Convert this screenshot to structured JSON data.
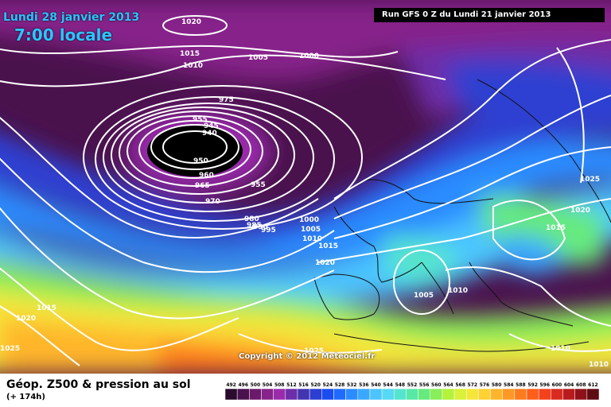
{
  "header": {
    "date": "Lundi 28 janvier 2013",
    "time": "7:00 locale",
    "run": "Run GFS 0 Z du Lundi 21 janvier 2013"
  },
  "footer": {
    "title": "Géop. Z500 & pression au sol",
    "subtitle": "(+ 174h)",
    "copyright": "Copyright © 2012 Meteociel.fr"
  },
  "scale": {
    "ticks": [
      "492",
      "496",
      "500",
      "504",
      "508",
      "512",
      "516",
      "520",
      "524",
      "528",
      "532",
      "536",
      "540",
      "544",
      "548",
      "552",
      "556",
      "560",
      "564",
      "568",
      "572",
      "576",
      "580",
      "584",
      "588",
      "592",
      "596",
      "600",
      "604",
      "608",
      "612"
    ],
    "colors": [
      "#2a0b2e",
      "#4a124d",
      "#6b1a6b",
      "#86238a",
      "#9a2cac",
      "#6d2ea9",
      "#4334b0",
      "#2d3fd1",
      "#1a4cf0",
      "#1f6bff",
      "#2b8cff",
      "#3aa8ff",
      "#4cc4ff",
      "#56d9f5",
      "#55e4cf",
      "#58e8a6",
      "#66ea7e",
      "#88ee59",
      "#b4f23c",
      "#d9f13a",
      "#f5e63a",
      "#ffd133",
      "#ffb52b",
      "#ff9824",
      "#ff7b1e",
      "#ff5e1b",
      "#f3411c",
      "#da2a1f",
      "#b81b1d",
      "#8f121a",
      "#5f0b12"
    ]
  },
  "isobars": [
    "1020",
    "1015",
    "1010",
    "1005",
    "1000",
    "975",
    "955",
    "945",
    "940",
    "950",
    "960",
    "965",
    "970",
    "955",
    "980",
    "985",
    "990",
    "995",
    "1000",
    "1005",
    "1010",
    "1015",
    "1020",
    "1015",
    "1020",
    "1025",
    "1025",
    "1005",
    "1010",
    "1025",
    "1020",
    "1015",
    "1010",
    "1010"
  ]
}
